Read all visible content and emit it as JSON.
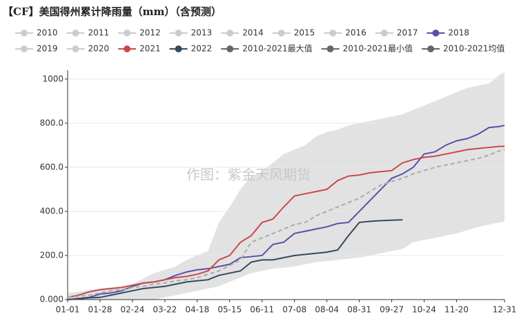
{
  "chart_data": {
    "type": "line",
    "title": "【CF】美国得州累计降雨量（mm）（含预测）",
    "watermark": "作图：紫金天风期货",
    "x": [
      0,
      9,
      18,
      27,
      36,
      45,
      54,
      63,
      72,
      81,
      90,
      99,
      108,
      117,
      126,
      135,
      144,
      153,
      162,
      171,
      180,
      189,
      198,
      207,
      216,
      225,
      234,
      243,
      252,
      261,
      270,
      279,
      288,
      297,
      306,
      315,
      324,
      333,
      342,
      351,
      360,
      364
    ],
    "xlim": [
      0,
      364
    ],
    "xticks": [
      {
        "value": 0,
        "label": "01-01"
      },
      {
        "value": 27,
        "label": "01-28"
      },
      {
        "value": 54,
        "label": "02-24"
      },
      {
        "value": 81,
        "label": "03-22"
      },
      {
        "value": 108,
        "label": "04-18"
      },
      {
        "value": 135,
        "label": "05-15"
      },
      {
        "value": 162,
        "label": "06-11"
      },
      {
        "value": 189,
        "label": "07-08"
      },
      {
        "value": 216,
        "label": "08-04"
      },
      {
        "value": 243,
        "label": "08-31"
      },
      {
        "value": 270,
        "label": "09-27"
      },
      {
        "value": 297,
        "label": "10-24"
      },
      {
        "value": 324,
        "label": "11-20"
      },
      {
        "value": 364,
        "label": "12-31"
      }
    ],
    "ylim": [
      0,
      1040
    ],
    "yticks": [
      {
        "value": 0,
        "label": "0.000"
      },
      {
        "value": 200,
        "label": "200.0"
      },
      {
        "value": 400,
        "label": "400.0"
      },
      {
        "value": 600,
        "label": "600.0"
      },
      {
        "value": 800,
        "label": "800.0"
      },
      1000
    ],
    "grid": true,
    "hidden_color": "#cccccc",
    "band_color": "#e2e2e2",
    "series": [
      {
        "name": "2010",
        "visible": false
      },
      {
        "name": "2011",
        "visible": false
      },
      {
        "name": "2012",
        "visible": false
      },
      {
        "name": "2013",
        "visible": false
      },
      {
        "name": "2014",
        "visible": false
      },
      {
        "name": "2015",
        "visible": false
      },
      {
        "name": "2016",
        "visible": false
      },
      {
        "name": "2017",
        "visible": false
      },
      {
        "name": "2018",
        "color": "#5a4fa8",
        "values": [
          0,
          5,
          10,
          25,
          30,
          40,
          60,
          75,
          80,
          90,
          110,
          125,
          135,
          140,
          150,
          160,
          190,
          195,
          200,
          250,
          260,
          300,
          310,
          320,
          330,
          345,
          350,
          400,
          450,
          500,
          550,
          570,
          600,
          660,
          670,
          700,
          720,
          730,
          750,
          780,
          785,
          790
        ]
      },
      {
        "name": "2019",
        "visible": false
      },
      {
        "name": "2020",
        "visible": false
      },
      {
        "name": "2021",
        "color": "#c9474a",
        "values": [
          10,
          20,
          35,
          45,
          50,
          55,
          65,
          75,
          80,
          90,
          100,
          105,
          115,
          130,
          180,
          200,
          260,
          290,
          350,
          365,
          420,
          470,
          480,
          490,
          500,
          540,
          560,
          565,
          575,
          580,
          585,
          620,
          635,
          645,
          650,
          660,
          670,
          680,
          685,
          690,
          695,
          695
        ]
      },
      {
        "name": "2022",
        "color": "#34495e",
        "values": [
          0,
          3,
          8,
          10,
          20,
          30,
          40,
          50,
          55,
          60,
          70,
          80,
          85,
          90,
          110,
          120,
          130,
          170,
          180,
          180,
          190,
          200,
          205,
          210,
          215,
          225,
          290,
          350,
          355,
          358,
          360,
          362,
          null,
          null,
          null,
          null,
          null,
          null,
          null,
          null,
          null,
          null
        ]
      },
      {
        "name": "2010-2021最大值",
        "color": "#666666",
        "style": "band-top",
        "values": [
          30,
          35,
          45,
          50,
          55,
          60,
          70,
          95,
          120,
          135,
          150,
          180,
          200,
          220,
          350,
          420,
          500,
          560,
          580,
          620,
          660,
          680,
          700,
          740,
          760,
          770,
          790,
          800,
          810,
          820,
          830,
          840,
          860,
          880,
          900,
          920,
          940,
          960,
          970,
          980,
          1020,
          1030
        ]
      },
      {
        "name": "2010-2021最小值",
        "color": "#666666",
        "style": "band-bottom",
        "values": [
          0,
          0,
          0,
          0,
          0,
          0,
          0,
          0,
          0,
          10,
          20,
          30,
          40,
          50,
          60,
          80,
          100,
          120,
          130,
          140,
          145,
          150,
          160,
          170,
          175,
          180,
          185,
          190,
          200,
          210,
          220,
          230,
          260,
          270,
          280,
          290,
          300,
          315,
          330,
          340,
          350,
          355
        ]
      },
      {
        "name": "2010-2021均值",
        "color": "#666666",
        "style": "dash",
        "line_color": "#aaaaaa",
        "values": [
          10,
          15,
          20,
          30,
          40,
          45,
          55,
          60,
          70,
          75,
          85,
          90,
          100,
          115,
          130,
          155,
          180,
          260,
          280,
          300,
          320,
          340,
          350,
          380,
          400,
          420,
          440,
          460,
          490,
          520,
          535,
          550,
          570,
          585,
          600,
          610,
          620,
          630,
          640,
          655,
          675,
          680
        ]
      }
    ]
  }
}
